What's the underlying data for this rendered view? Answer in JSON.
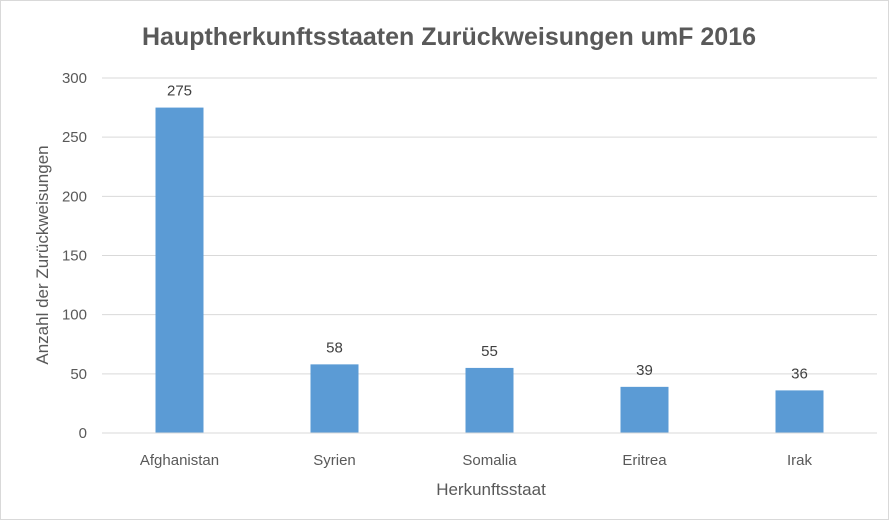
{
  "chart_data": {
    "type": "bar",
    "title": "Hauptherkunftsstaaten Zurückweisungen umF 2016",
    "xlabel": "Herkunftsstaat",
    "ylabel": "Anzahl  der Zurückweisungen",
    "categories": [
      "Afghanistan",
      "Syrien",
      "Somalia",
      "Eritrea",
      "Irak"
    ],
    "values": [
      275,
      58,
      55,
      39,
      36
    ],
    "ylim": [
      0,
      300
    ],
    "yticks": [
      0,
      50,
      100,
      150,
      200,
      250,
      300
    ],
    "grid": true,
    "legend": "none",
    "bar_color": "#5b9bd5",
    "grid_color": "#d9d9d9"
  }
}
